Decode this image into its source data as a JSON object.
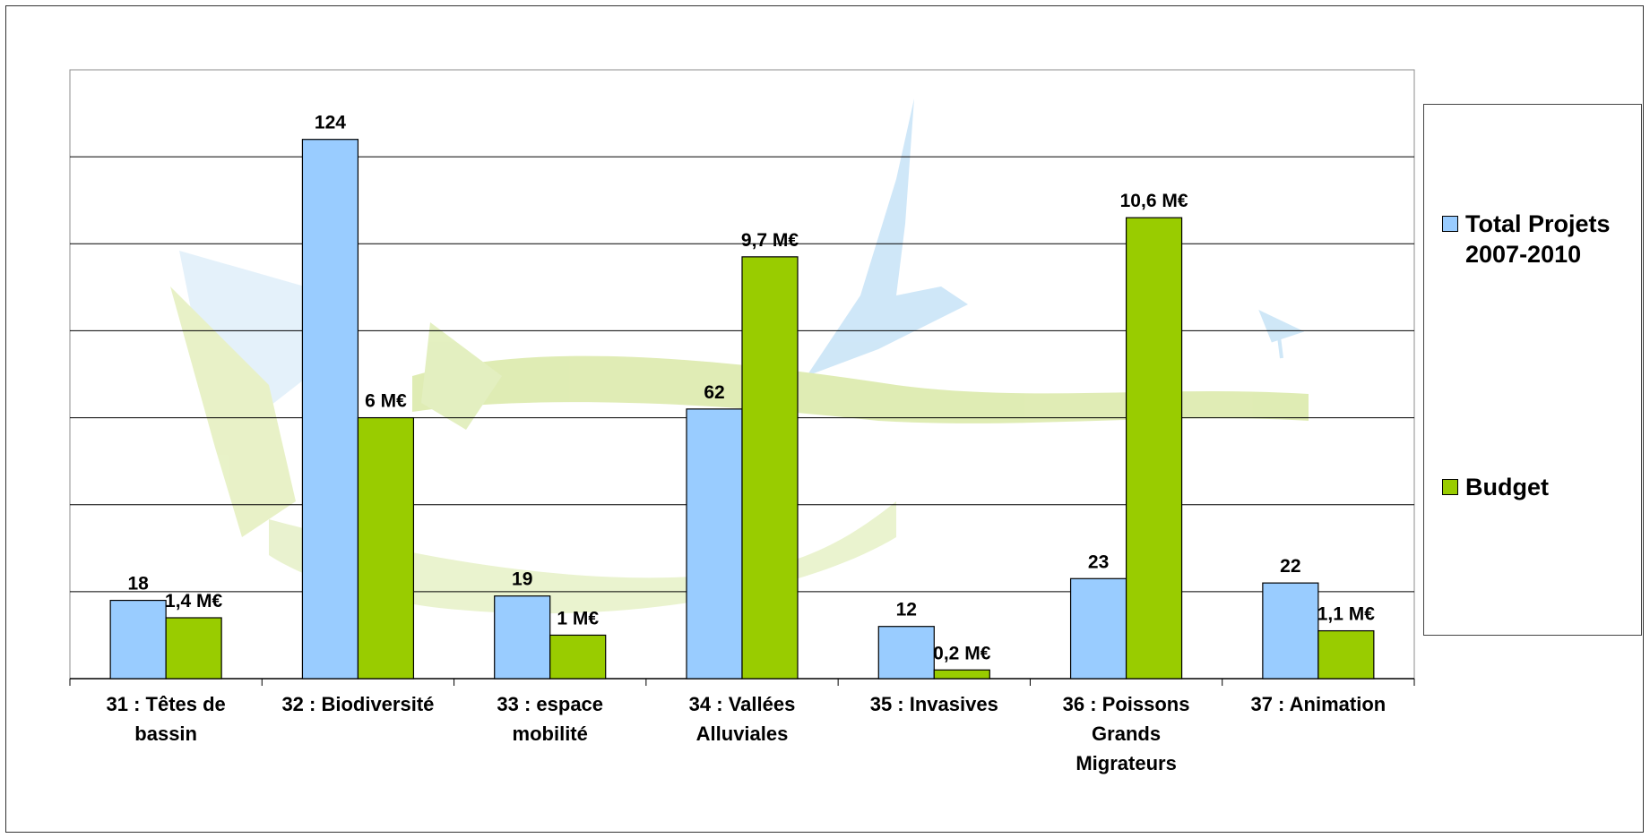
{
  "chart_data": {
    "type": "bar",
    "categories": [
      [
        "31 : Têtes de",
        "bassin"
      ],
      [
        "32 : Biodiversité"
      ],
      [
        "33 : espace",
        "mobilité"
      ],
      [
        "34 : Vallées",
        "Alluviales"
      ],
      [
        "35 : Invasives"
      ],
      [
        "36 : Poissons",
        "Grands",
        "Migrateurs"
      ],
      [
        "37 : Animation"
      ]
    ],
    "series": [
      {
        "name": "Total Projets 2007-2010",
        "color": "#99ccff",
        "values": [
          18,
          124,
          19,
          62,
          12,
          23,
          22
        ],
        "labels": [
          "18",
          "124",
          "19",
          "62",
          "12",
          "23",
          "22"
        ]
      },
      {
        "name": "Budget",
        "color": "#99cc00",
        "values": [
          1.4,
          6,
          1,
          9.7,
          0.2,
          10.6,
          1.1
        ],
        "labels": [
          "1,4 M€",
          "6 M€",
          "1 M€",
          "9,7 M€",
          "0,2 M€",
          "10,6 M€",
          "1,1 M€"
        ]
      }
    ],
    "scales": {
      "Total Projets 2007-2010": [
        0,
        140
      ],
      "Budget": [
        0,
        14
      ]
    },
    "gridlines": 7,
    "legend": "right",
    "title": "",
    "xlabel": "",
    "ylabel": ""
  }
}
